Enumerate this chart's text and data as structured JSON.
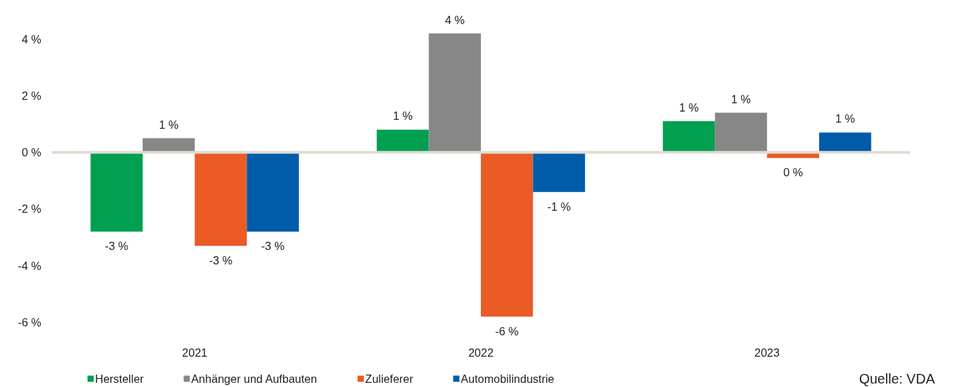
{
  "chart_data": {
    "type": "bar",
    "categories": [
      "2021",
      "2022",
      "2023"
    ],
    "series": [
      {
        "name": "Hersteller",
        "color": "#00a050",
        "values": [
          -2.8,
          0.8,
          1.1
        ],
        "value_labels": [
          "-3 %",
          "1 %",
          "1 %"
        ]
      },
      {
        "name": "Anhänger und Aufbauten",
        "color": "#878787",
        "values": [
          0.5,
          4.2,
          1.4
        ],
        "value_labels": [
          "1 %",
          "4 %",
          "1 %"
        ]
      },
      {
        "name": "Zulieferer",
        "color": "#ea5b25",
        "values": [
          -3.3,
          -5.8,
          -0.2
        ],
        "value_labels": [
          "-3 %",
          "-6 %",
          "0 %"
        ]
      },
      {
        "name": "Automobilindustrie",
        "color": "#005ca9",
        "values": [
          -2.8,
          -1.4,
          0.7
        ],
        "value_labels": [
          "-3 %",
          "-1 %",
          "1 %"
        ]
      }
    ],
    "ylim": [
      -6,
      4.2
    ],
    "yticks": [
      {
        "value": -6,
        "label": "-6 %"
      },
      {
        "value": -4,
        "label": "-4 %"
      },
      {
        "value": -2,
        "label": "-2 %"
      },
      {
        "value": 0,
        "label": "0 %"
      },
      {
        "value": 2,
        "label": "2 %"
      },
      {
        "value": 4,
        "label": "4 %"
      }
    ],
    "legend": "bottom",
    "annotations": [
      "Quelle: VDA"
    ]
  }
}
